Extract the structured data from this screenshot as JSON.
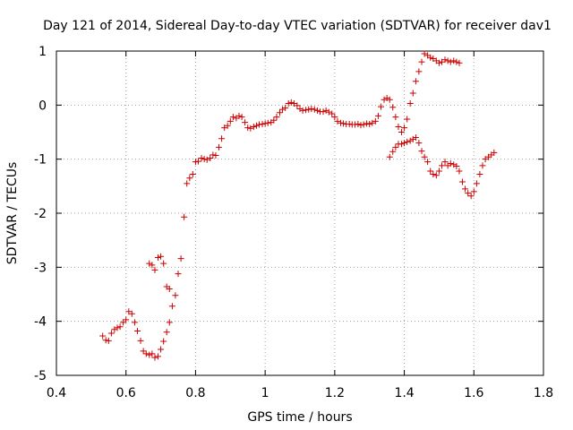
{
  "chart_data": {
    "type": "scatter",
    "title": "Day 121 of 2014, Sidereal Day-to-day VTEC variation (SDTVAR) for receiver dav1",
    "xlabel": "GPS time / hours",
    "ylabel": "SDTVAR / TECUs",
    "xlim": [
      0.4,
      1.8
    ],
    "ylim": [
      -5,
      1
    ],
    "xticks": [
      0.4,
      0.6,
      0.8,
      1.0,
      1.2,
      1.4,
      1.6,
      1.8
    ],
    "xtick_labels": [
      "0.4",
      "0.6",
      "0.8",
      "1",
      "1.2",
      "1.4",
      "1.6",
      "1.8"
    ],
    "yticks": [
      -5,
      -4,
      -3,
      -2,
      -1,
      0,
      1
    ],
    "ytick_labels": [
      "-5",
      "-4",
      "-3",
      "-2",
      "-1",
      "0",
      "1"
    ],
    "grid": true,
    "marker": "+",
    "marker_color": "#cc0000",
    "series": [
      {
        "name": "dav1",
        "points": [
          [
            0.533,
            -4.27
          ],
          [
            0.542,
            -4.35
          ],
          [
            0.55,
            -4.36
          ],
          [
            0.558,
            -4.22
          ],
          [
            0.567,
            -4.15
          ],
          [
            0.575,
            -4.12
          ],
          [
            0.583,
            -4.1
          ],
          [
            0.592,
            -4.02
          ],
          [
            0.6,
            -3.97
          ],
          [
            0.608,
            -3.82
          ],
          [
            0.617,
            -3.86
          ],
          [
            0.625,
            -4.02
          ],
          [
            0.633,
            -4.18
          ],
          [
            0.642,
            -4.36
          ],
          [
            0.65,
            -4.55
          ],
          [
            0.658,
            -4.6
          ],
          [
            0.667,
            -4.62
          ],
          [
            0.675,
            -4.6
          ],
          [
            0.683,
            -4.67
          ],
          [
            0.692,
            -4.65
          ],
          [
            0.7,
            -4.52
          ],
          [
            0.708,
            -4.37
          ],
          [
            0.717,
            -4.2
          ],
          [
            0.725,
            -4.02
          ],
          [
            0.733,
            -3.72
          ],
          [
            0.742,
            -3.52
          ],
          [
            0.75,
            -3.12
          ],
          [
            0.758,
            -2.84
          ],
          [
            0.767,
            -2.07
          ],
          [
            0.775,
            -1.45
          ],
          [
            0.783,
            -1.35
          ],
          [
            0.792,
            -1.28
          ],
          [
            0.8,
            -1.05
          ],
          [
            0.808,
            -1.04
          ],
          [
            0.817,
            -0.98
          ],
          [
            0.825,
            -1.0
          ],
          [
            0.833,
            -1.01
          ],
          [
            0.842,
            -0.98
          ],
          [
            0.85,
            -0.92
          ],
          [
            0.858,
            -0.93
          ],
          [
            0.867,
            -0.78
          ],
          [
            0.875,
            -0.62
          ],
          [
            0.883,
            -0.42
          ],
          [
            0.892,
            -0.38
          ],
          [
            0.9,
            -0.3
          ],
          [
            0.908,
            -0.22
          ],
          [
            0.917,
            -0.24
          ],
          [
            0.925,
            -0.2
          ],
          [
            0.933,
            -0.22
          ],
          [
            0.942,
            -0.32
          ],
          [
            0.95,
            -0.42
          ],
          [
            0.958,
            -0.43
          ],
          [
            0.967,
            -0.4
          ],
          [
            0.975,
            -0.38
          ],
          [
            0.983,
            -0.36
          ],
          [
            0.992,
            -0.35
          ],
          [
            1.0,
            -0.34
          ],
          [
            1.008,
            -0.33
          ],
          [
            1.017,
            -0.32
          ],
          [
            1.025,
            -0.28
          ],
          [
            1.033,
            -0.22
          ],
          [
            1.042,
            -0.14
          ],
          [
            1.05,
            -0.08
          ],
          [
            1.058,
            -0.05
          ],
          [
            1.067,
            0.03
          ],
          [
            1.075,
            0.05
          ],
          [
            1.083,
            0.03
          ],
          [
            1.092,
            -0.01
          ],
          [
            1.1,
            -0.07
          ],
          [
            1.108,
            -0.1
          ],
          [
            1.117,
            -0.09
          ],
          [
            1.125,
            -0.08
          ],
          [
            1.133,
            -0.07
          ],
          [
            1.142,
            -0.08
          ],
          [
            1.15,
            -0.1
          ],
          [
            1.158,
            -0.12
          ],
          [
            1.167,
            -0.12
          ],
          [
            1.175,
            -0.1
          ],
          [
            1.183,
            -0.13
          ],
          [
            1.192,
            -0.16
          ],
          [
            1.2,
            -0.22
          ],
          [
            1.208,
            -0.3
          ],
          [
            1.217,
            -0.33
          ],
          [
            1.225,
            -0.34
          ],
          [
            1.233,
            -0.35
          ],
          [
            1.242,
            -0.35
          ],
          [
            1.25,
            -0.36
          ],
          [
            1.258,
            -0.36
          ],
          [
            1.267,
            -0.35
          ],
          [
            1.275,
            -0.37
          ],
          [
            1.283,
            -0.36
          ],
          [
            1.292,
            -0.34
          ],
          [
            1.3,
            -0.35
          ],
          [
            1.308,
            -0.33
          ],
          [
            1.317,
            -0.3
          ],
          [
            1.325,
            -0.2
          ],
          [
            1.333,
            -0.03
          ],
          [
            1.342,
            0.1
          ],
          [
            1.35,
            0.13
          ],
          [
            1.358,
            0.1
          ],
          [
            1.367,
            -0.04
          ],
          [
            1.375,
            -0.22
          ],
          [
            1.383,
            -0.4
          ],
          [
            1.392,
            -0.5
          ],
          [
            1.4,
            -0.42
          ],
          [
            1.408,
            -0.26
          ],
          [
            1.417,
            0.03
          ],
          [
            1.425,
            0.22
          ],
          [
            1.433,
            0.44
          ],
          [
            1.442,
            0.62
          ],
          [
            1.45,
            0.8
          ],
          [
            1.458,
            0.95
          ],
          [
            1.467,
            0.92
          ],
          [
            1.475,
            0.88
          ],
          [
            1.483,
            0.86
          ],
          [
            1.492,
            0.82
          ],
          [
            1.5,
            0.78
          ],
          [
            1.508,
            0.8
          ],
          [
            1.517,
            0.84
          ],
          [
            1.525,
            0.82
          ],
          [
            1.533,
            0.8
          ],
          [
            1.542,
            0.82
          ],
          [
            1.55,
            0.8
          ],
          [
            1.558,
            0.78
          ],
          [
            1.358,
            -0.96
          ],
          [
            1.367,
            -0.86
          ],
          [
            1.375,
            -0.78
          ],
          [
            1.383,
            -0.72
          ],
          [
            1.392,
            -0.72
          ],
          [
            1.4,
            -0.7
          ],
          [
            1.408,
            -0.68
          ],
          [
            1.417,
            -0.66
          ],
          [
            1.425,
            -0.63
          ],
          [
            1.433,
            -0.6
          ],
          [
            1.442,
            -0.7
          ],
          [
            1.45,
            -0.85
          ],
          [
            1.458,
            -0.96
          ],
          [
            1.467,
            -1.05
          ],
          [
            1.475,
            -1.22
          ],
          [
            1.483,
            -1.28
          ],
          [
            1.492,
            -1.3
          ],
          [
            1.5,
            -1.22
          ],
          [
            1.508,
            -1.12
          ],
          [
            1.517,
            -1.05
          ],
          [
            1.525,
            -1.12
          ],
          [
            1.533,
            -1.08
          ],
          [
            1.542,
            -1.1
          ],
          [
            1.55,
            -1.13
          ],
          [
            1.558,
            -1.22
          ],
          [
            1.567,
            -1.42
          ],
          [
            1.575,
            -1.55
          ],
          [
            1.583,
            -1.63
          ],
          [
            1.592,
            -1.68
          ],
          [
            1.6,
            -1.6
          ],
          [
            1.608,
            -1.45
          ],
          [
            1.617,
            -1.28
          ],
          [
            1.625,
            -1.12
          ],
          [
            1.633,
            -1.0
          ],
          [
            1.642,
            -0.96
          ],
          [
            1.65,
            -0.92
          ],
          [
            1.658,
            -0.88
          ],
          [
            0.667,
            -2.93
          ],
          [
            0.675,
            -2.96
          ],
          [
            0.683,
            -3.05
          ],
          [
            0.692,
            -2.82
          ],
          [
            0.7,
            -2.8
          ],
          [
            0.708,
            -2.93
          ],
          [
            0.717,
            -3.36
          ],
          [
            0.725,
            -3.4
          ]
        ]
      }
    ]
  }
}
